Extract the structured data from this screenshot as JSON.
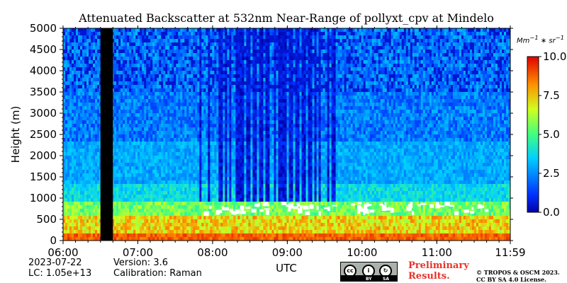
{
  "chart_data": {
    "type": "heatmap",
    "title": "Attenuated Backscatter at 532nm Near-Range of pollyxt_cpv at Mindelo",
    "xlabel": "UTC",
    "ylabel": "Height (m)",
    "x_ticks": [
      "06:00",
      "07:00",
      "08:00",
      "09:00",
      "10:00",
      "11:00",
      "11:59"
    ],
    "x_range": [
      "06:00",
      "11:59"
    ],
    "y_ticks": [
      0,
      500,
      1000,
      1500,
      2000,
      2500,
      3000,
      3500,
      4000,
      4500,
      5000
    ],
    "y_range": [
      0,
      5000
    ],
    "colorbar": {
      "unit": "Mm^-1 * sr^-1",
      "ticks": [
        "0.0",
        "2.5",
        "5.0",
        "7.5",
        "10.0"
      ],
      "range": [
        0,
        10
      ],
      "colormap": "jet"
    },
    "features": {
      "no_data_gap_utc": [
        "06:30",
        "06:40"
      ],
      "cloud_base_height_m": 850,
      "aerosol_layer_top_m": 900
    }
  },
  "meta": {
    "date": "2023-07-22",
    "lc": "LC: 1.05e+13",
    "version": "Version: 3.6",
    "calibration": "Calibration: Raman"
  },
  "footer": {
    "preliminary": "Preliminary Results.",
    "copyright_line1": "© TROPOS & OSCM 2023.",
    "copyright_line2": "CC BY SA 4.0 License.",
    "license_badge_labels": [
      "BY",
      "SA"
    ]
  }
}
